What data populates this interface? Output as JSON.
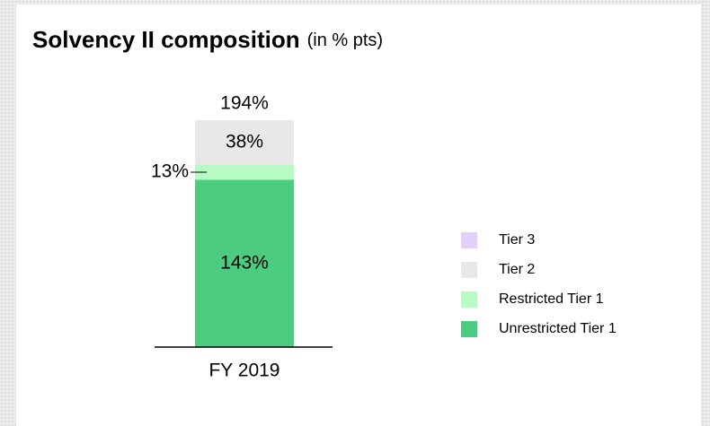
{
  "chart_data": {
    "type": "stacked_bar",
    "title": "Solvency II composition",
    "subtitle": "(in % pts)",
    "categories": [
      "FY 2019"
    ],
    "series": [
      {
        "name": "Unrestricted Tier 1",
        "color": "#4ccc80",
        "values": [
          143
        ],
        "value_labels": [
          "143%"
        ]
      },
      {
        "name": "Restricted Tier 1",
        "color": "#b6fcc4",
        "values": [
          13
        ],
        "value_labels": [
          "13%"
        ]
      },
      {
        "name": "Tier 2",
        "color": "#e8e8e8",
        "values": [
          38
        ],
        "value_labels": [
          "38%"
        ]
      },
      {
        "name": "Tier 3",
        "color": "#e2d0fa",
        "values": [
          0
        ]
      }
    ],
    "totals": [
      194
    ],
    "total_labels": [
      "194%"
    ],
    "legend": "right"
  }
}
